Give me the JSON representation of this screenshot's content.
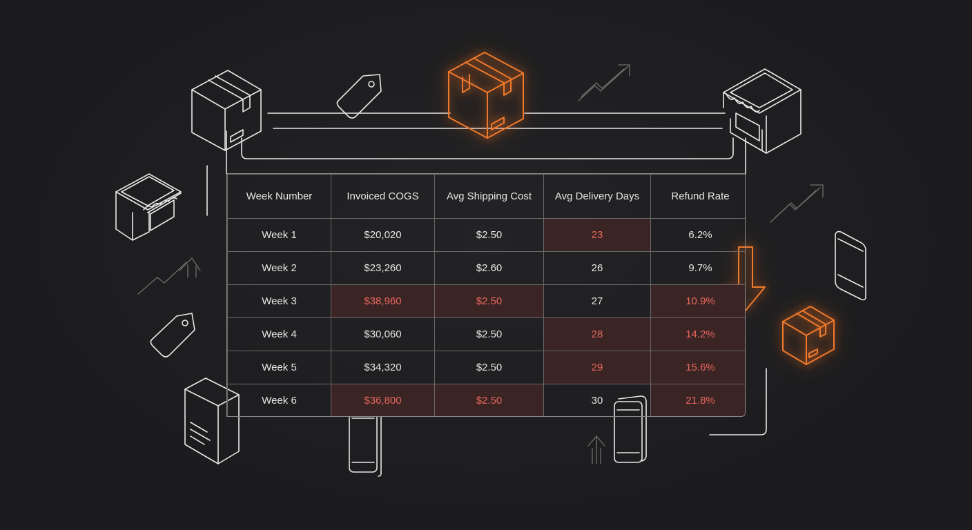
{
  "chart_data": {
    "type": "table",
    "columns": [
      "Week Number",
      "Invoiced COGS",
      "Avg Shipping Cost",
      "Avg Delivery Days",
      "Refund Rate"
    ],
    "rows": [
      [
        "Week 1",
        "$20,020",
        "$2.50",
        "23",
        "6.2%"
      ],
      [
        "Week 2",
        "$23,260",
        "$2.60",
        "26",
        "9.7%"
      ],
      [
        "Week 3",
        "$38,960",
        "$2.50",
        "27",
        "10.9%"
      ],
      [
        "Week 4",
        "$30,060",
        "$2.50",
        "28",
        "14.2%"
      ],
      [
        "Week 5",
        "$34,320",
        "$2.50",
        "29",
        "15.6%"
      ],
      [
        "Week 6",
        "$36,800",
        "$2.50",
        "30",
        "21.8%"
      ]
    ],
    "highlighted_cells": [
      [
        0,
        3
      ],
      [
        2,
        1
      ],
      [
        2,
        2
      ],
      [
        2,
        4
      ],
      [
        3,
        3
      ],
      [
        3,
        4
      ],
      [
        4,
        3
      ],
      [
        4,
        4
      ],
      [
        5,
        1
      ],
      [
        5,
        2
      ],
      [
        5,
        4
      ]
    ]
  },
  "colors": {
    "background": "#1c1c1e",
    "line": "#e8e8e8",
    "accent": "#f07a2c",
    "highlight_text": "#e8675d",
    "highlight_fill": "#3a2424"
  },
  "icons": [
    "package-box-icon",
    "price-tag-icon",
    "storefront-icon",
    "trend-arrow-icon",
    "smartphone-icon",
    "down-arrow-icon",
    "document-box-icon",
    "up-arrow-icon"
  ]
}
